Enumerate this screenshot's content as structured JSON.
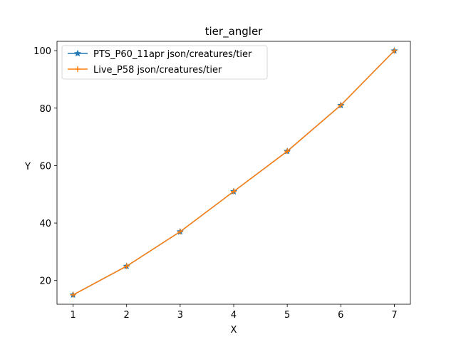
{
  "chart_data": {
    "type": "line",
    "title": "tier_angler",
    "xlabel": "X",
    "ylabel": "Y",
    "xlim": [
      0.7,
      7.3
    ],
    "ylim": [
      11.75,
      103.25
    ],
    "xticks": [
      1,
      2,
      3,
      4,
      5,
      6,
      7
    ],
    "yticks": [
      20,
      40,
      60,
      80,
      100
    ],
    "x": [
      1,
      2,
      3,
      4,
      5,
      6,
      7
    ],
    "series": [
      {
        "name": "PTS_P60_11apr json/creatures/tier",
        "values": [
          15,
          25,
          37,
          51,
          65,
          81,
          100
        ],
        "color": "#1f77b4",
        "marker": "star"
      },
      {
        "name": "Live_P58 json/creatures/tier",
        "values": [
          15,
          25,
          37,
          51,
          65,
          81,
          100
        ],
        "color": "#ff7f0e",
        "marker": "plus"
      }
    ],
    "grid": false,
    "legend_position": "top-left"
  }
}
